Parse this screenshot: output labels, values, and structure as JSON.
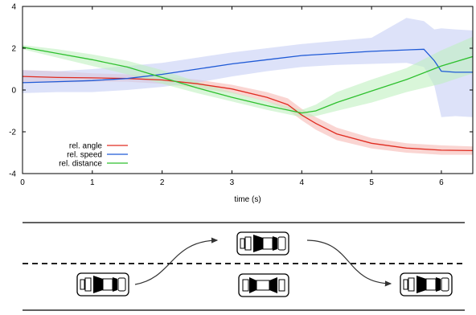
{
  "chart_data": {
    "type": "line",
    "title": "",
    "xlabel": "time (s)",
    "ylabel": "",
    "xlim": [
      0,
      6.45
    ],
    "ylim": [
      -4,
      4
    ],
    "xticks": [
      0,
      1,
      2,
      3,
      4,
      5,
      6
    ],
    "yticks": [
      -4,
      -2,
      0,
      2,
      4
    ],
    "xtick_labels": [
      "0",
      "1",
      "2",
      "3",
      "4",
      "5",
      "6"
    ],
    "ytick_labels": [
      "-4",
      "-2",
      "0",
      "2",
      "4"
    ],
    "grid": false,
    "legend_position": "bottom-left",
    "series": [
      {
        "name": "rel. angle",
        "color": "#e02c20",
        "band_color": "#f7b9b4",
        "x": [
          0,
          0.5,
          1.0,
          1.5,
          2.0,
          2.5,
          3.0,
          3.5,
          3.8,
          4.0,
          4.2,
          4.5,
          5.0,
          5.5,
          6.0,
          6.45
        ],
        "y": [
          0.65,
          0.6,
          0.58,
          0.55,
          0.48,
          0.3,
          0.05,
          -0.35,
          -0.7,
          -1.2,
          -1.6,
          -2.1,
          -2.55,
          -2.78,
          -2.88,
          -2.9
        ],
        "lower": [
          0.35,
          0.35,
          0.4,
          0.4,
          0.3,
          0.1,
          -0.15,
          -0.55,
          -0.95,
          -1.45,
          -1.9,
          -2.4,
          -2.8,
          -3.0,
          -3.1,
          -3.1
        ],
        "upper": [
          0.95,
          0.9,
          0.8,
          0.75,
          0.65,
          0.5,
          0.25,
          -0.1,
          -0.4,
          -0.9,
          -1.3,
          -1.8,
          -2.3,
          -2.55,
          -2.65,
          -2.7
        ]
      },
      {
        "name": "rel. speed",
        "color": "#1f5ad6",
        "band_color": "#c6cff5",
        "x": [
          0,
          0.5,
          1.0,
          1.5,
          2.0,
          2.5,
          3.0,
          3.5,
          4.0,
          4.5,
          5.0,
          5.5,
          5.75,
          5.9,
          6.0,
          6.2,
          6.45
        ],
        "y": [
          0.35,
          0.4,
          0.45,
          0.55,
          0.75,
          1.0,
          1.25,
          1.45,
          1.65,
          1.75,
          1.85,
          1.92,
          1.95,
          1.4,
          0.9,
          0.85,
          0.85
        ],
        "lower": [
          -0.15,
          -0.1,
          -0.1,
          0.0,
          0.15,
          0.35,
          0.65,
          0.9,
          1.1,
          1.2,
          1.25,
          1.3,
          1.1,
          0.2,
          -1.3,
          -1.25,
          -1.3
        ],
        "upper": [
          0.95,
          0.9,
          1.0,
          1.15,
          1.3,
          1.55,
          1.8,
          2.0,
          2.2,
          2.35,
          2.5,
          3.45,
          3.3,
          2.9,
          2.95,
          2.9,
          2.85
        ]
      },
      {
        "name": "rel. distance",
        "color": "#2ec02e",
        "band_color": "#bff0bf",
        "x": [
          0,
          0.5,
          1.0,
          1.5,
          2.0,
          2.5,
          3.0,
          3.5,
          4.0,
          4.2,
          4.5,
          5.0,
          5.5,
          6.0,
          6.45
        ],
        "y": [
          2.05,
          1.75,
          1.45,
          1.1,
          0.6,
          0.1,
          -0.35,
          -0.75,
          -1.1,
          -1.0,
          -0.6,
          -0.05,
          0.5,
          1.15,
          1.6
        ],
        "lower": [
          1.95,
          1.55,
          1.15,
          0.75,
          0.3,
          -0.15,
          -0.55,
          -0.95,
          -1.3,
          -1.25,
          -1.0,
          -0.6,
          -0.1,
          0.3,
          0.8
        ],
        "upper": [
          2.15,
          1.95,
          1.7,
          1.4,
          0.95,
          0.4,
          -0.1,
          -0.55,
          -0.95,
          -0.7,
          -0.1,
          0.5,
          1.05,
          1.9,
          2.55
        ]
      }
    ]
  },
  "scene": {
    "illustration": "lane-change maneuver schematic"
  }
}
